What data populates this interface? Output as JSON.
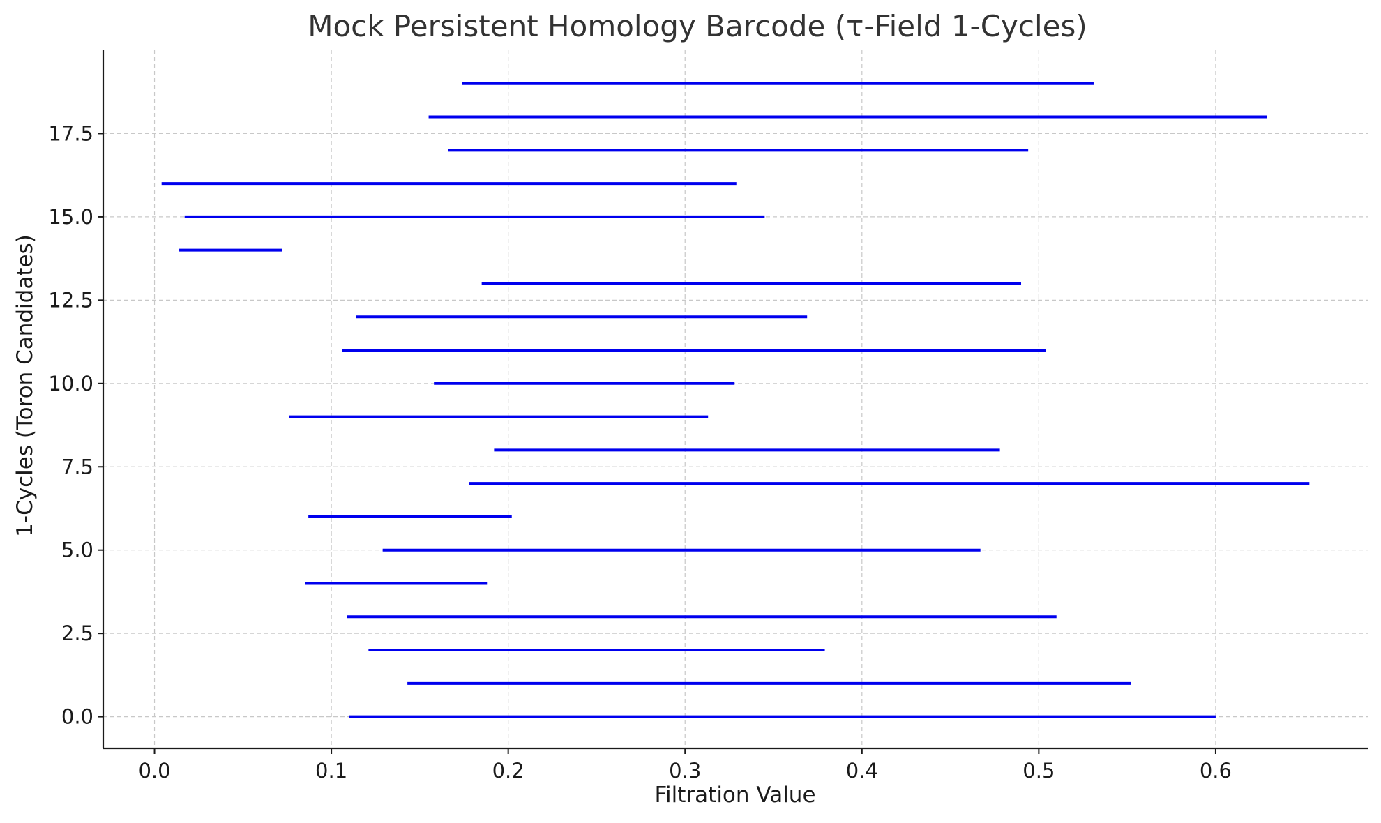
{
  "chart_data": {
    "type": "barcode",
    "title": "Mock Persistent Homology Barcode (τ-Field 1-Cycles)",
    "xlabel": "Filtration Value",
    "ylabel": "1-Cycles (Toron Candidates)",
    "xlim": [
      -0.029,
      0.686
    ],
    "ylim": [
      -0.95,
      20.0
    ],
    "xticks": [
      0.0,
      0.1,
      0.2,
      0.3,
      0.4,
      0.5,
      0.6
    ],
    "xtick_labels": [
      "0.0",
      "0.1",
      "0.2",
      "0.3",
      "0.4",
      "0.5",
      "0.6"
    ],
    "yticks": [
      0.0,
      2.5,
      5.0,
      7.5,
      10.0,
      12.5,
      15.0,
      17.5
    ],
    "ytick_labels": [
      "0.0",
      "2.5",
      "5.0",
      "7.5",
      "10.0",
      "12.5",
      "15.0",
      "17.5"
    ],
    "grid": true,
    "bar_color": "#0000ee",
    "series": [
      {
        "values": [
          {
            "y": 0,
            "birth": 0.11,
            "death": 0.6
          },
          {
            "y": 1,
            "birth": 0.143,
            "death": 0.552
          },
          {
            "y": 2,
            "birth": 0.121,
            "death": 0.379
          },
          {
            "y": 3,
            "birth": 0.109,
            "death": 0.51
          },
          {
            "y": 4,
            "birth": 0.085,
            "death": 0.188
          },
          {
            "y": 5,
            "birth": 0.129,
            "death": 0.467
          },
          {
            "y": 6,
            "birth": 0.087,
            "death": 0.202
          },
          {
            "y": 7,
            "birth": 0.178,
            "death": 0.653
          },
          {
            "y": 8,
            "birth": 0.192,
            "death": 0.478
          },
          {
            "y": 9,
            "birth": 0.076,
            "death": 0.313
          },
          {
            "y": 10,
            "birth": 0.158,
            "death": 0.328
          },
          {
            "y": 11,
            "birth": 0.106,
            "death": 0.504
          },
          {
            "y": 12,
            "birth": 0.114,
            "death": 0.369
          },
          {
            "y": 13,
            "birth": 0.185,
            "death": 0.49
          },
          {
            "y": 14,
            "birth": 0.014,
            "death": 0.072
          },
          {
            "y": 15,
            "birth": 0.017,
            "death": 0.345
          },
          {
            "y": 16,
            "birth": 0.004,
            "death": 0.329
          },
          {
            "y": 17,
            "birth": 0.166,
            "death": 0.494
          },
          {
            "y": 18,
            "birth": 0.155,
            "death": 0.629
          },
          {
            "y": 19,
            "birth": 0.174,
            "death": 0.531
          }
        ]
      }
    ]
  }
}
